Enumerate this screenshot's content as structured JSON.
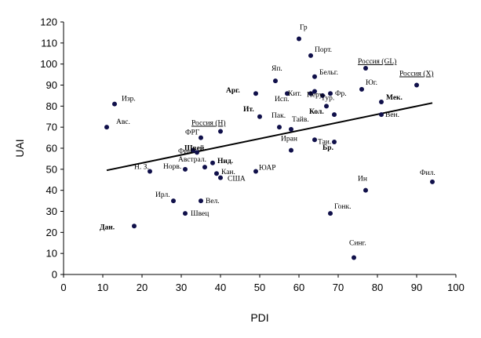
{
  "chart_data": {
    "type": "scatter",
    "title": "",
    "xlabel": "PDI",
    "ylabel": "UAI",
    "xlim": [
      0,
      100
    ],
    "ylim": [
      0,
      120
    ],
    "xticks": [
      "0",
      "10",
      "20",
      "30",
      "40",
      "50",
      "60",
      "70",
      "80",
      "90",
      "100"
    ],
    "yticks": [
      "0",
      "10",
      "20",
      "30",
      "40",
      "50",
      "60",
      "70",
      "80",
      "90",
      "100",
      "110",
      "120"
    ],
    "grid": false,
    "trendline": {
      "x": [
        11,
        94
      ],
      "y": [
        49.5,
        81.5
      ]
    },
    "points": [
      {
        "x": 60,
        "y": 112,
        "label": "Гр"
      },
      {
        "x": 63,
        "y": 104,
        "label": "Порт."
      },
      {
        "x": 77,
        "y": 98,
        "label": "Россия (GL)",
        "underline": true
      },
      {
        "x": 64,
        "y": 94,
        "label": "Бельг."
      },
      {
        "x": 54,
        "y": 92,
        "label": "Яп."
      },
      {
        "x": 90,
        "y": 90,
        "label": "Россия (X)",
        "underline": true
      },
      {
        "x": 76,
        "y": 88,
        "label": "Юг."
      },
      {
        "x": 64,
        "y": 87,
        "label": "Перу"
      },
      {
        "x": 49,
        "y": 86,
        "label": "Арг.",
        "bold": true
      },
      {
        "x": 57,
        "y": 86,
        "label": "Исп."
      },
      {
        "x": 63,
        "y": 86,
        "label": "Кит."
      },
      {
        "x": 68,
        "y": 86,
        "label": "Фр."
      },
      {
        "x": 66,
        "y": 85,
        "label": ""
      },
      {
        "x": 81,
        "y": 82,
        "label": "Мек.",
        "bold": true
      },
      {
        "x": 13,
        "y": 81,
        "label": "Изр."
      },
      {
        "x": 67,
        "y": 80,
        "label": "Тур."
      },
      {
        "x": 69,
        "y": 76,
        "label": "Кол.",
        "bold": true
      },
      {
        "x": 81,
        "y": 76,
        "label": "Вен."
      },
      {
        "x": 50,
        "y": 75,
        "label": "Ит.",
        "bold": true
      },
      {
        "x": 11,
        "y": 70,
        "label": "Авс."
      },
      {
        "x": 55,
        "y": 70,
        "label": "Пак."
      },
      {
        "x": 58,
        "y": 69,
        "label": "Тайв."
      },
      {
        "x": 40,
        "y": 68,
        "label": "Россия (Н)",
        "underline": true
      },
      {
        "x": 35,
        "y": 65,
        "label": "ФРГ"
      },
      {
        "x": 64,
        "y": 64,
        "label": "Таи."
      },
      {
        "x": 69,
        "y": 63,
        "label": "Бр.",
        "bold": true
      },
      {
        "x": 33,
        "y": 59,
        "label": "Фин."
      },
      {
        "x": 34,
        "y": 58,
        "label": "Швей.",
        "bold": true
      },
      {
        "x": 58,
        "y": 59,
        "label": "Иран"
      },
      {
        "x": 38,
        "y": 53,
        "label": "Нид.",
        "bold": true
      },
      {
        "x": 36,
        "y": 51,
        "label": "Австрал."
      },
      {
        "x": 31,
        "y": 50,
        "label": "Норв."
      },
      {
        "x": 22,
        "y": 49,
        "label": "Н. З."
      },
      {
        "x": 49,
        "y": 49,
        "label": "ЮАР"
      },
      {
        "x": 39,
        "y": 48,
        "label": "Кан."
      },
      {
        "x": 40,
        "y": 46,
        "label": "США"
      },
      {
        "x": 94,
        "y": 44,
        "label": "Фил."
      },
      {
        "x": 77,
        "y": 40,
        "label": "Ин"
      },
      {
        "x": 28,
        "y": 35,
        "label": "Ирл."
      },
      {
        "x": 35,
        "y": 35,
        "label": "Вел."
      },
      {
        "x": 68,
        "y": 29,
        "label": "Гонк."
      },
      {
        "x": 31,
        "y": 29,
        "label": "Швец"
      },
      {
        "x": 18,
        "y": 23,
        "label": "Дан.",
        "bold": true
      },
      {
        "x": 74,
        "y": 8,
        "label": "Синг."
      }
    ]
  }
}
